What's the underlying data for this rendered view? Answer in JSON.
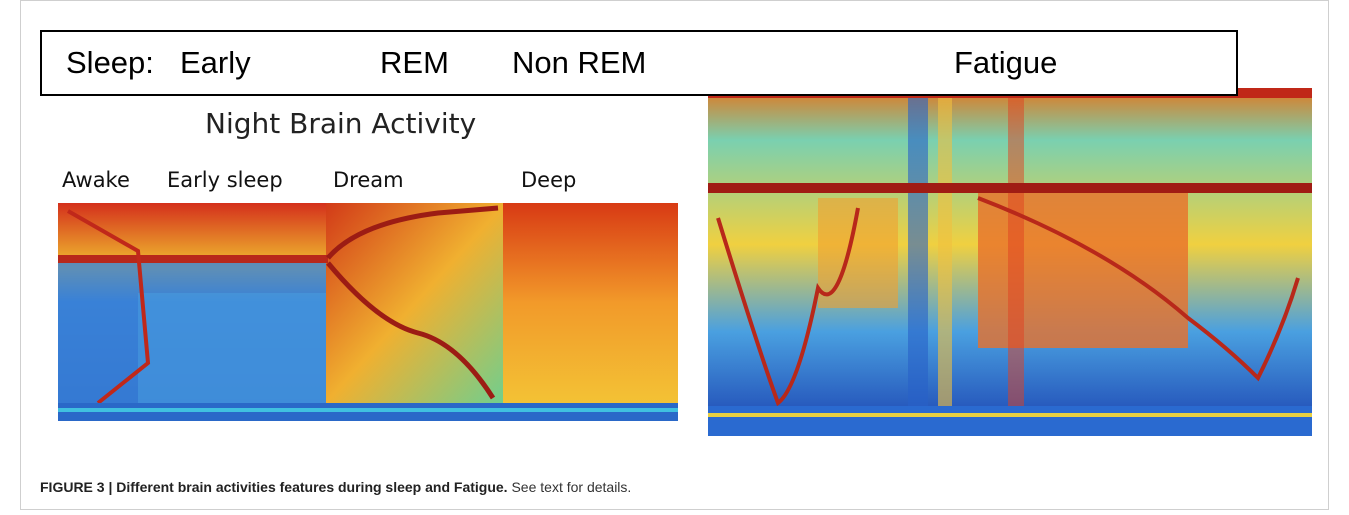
{
  "figure": {
    "header": {
      "labels": [
        "Sleep:",
        "Early",
        "REM",
        "Non REM",
        "Fatigue"
      ]
    },
    "left_panel": {
      "title": "Night Brain Activity",
      "stages": [
        "Awake",
        "Early sleep",
        "Dream",
        "Deep"
      ]
    },
    "caption": {
      "label": "FIGURE 3 | Different brain activities features during sleep and Fatigue.",
      "text": "See text for details."
    }
  }
}
